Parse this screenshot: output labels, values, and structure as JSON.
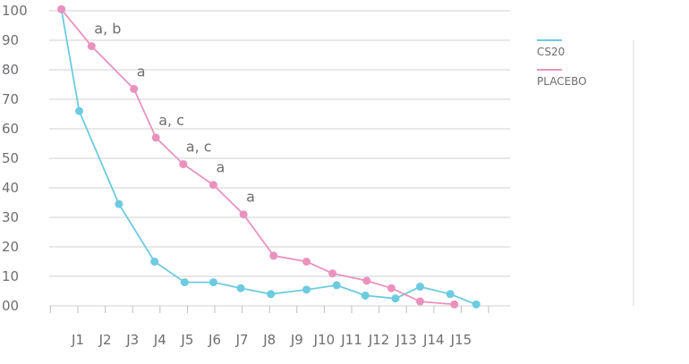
{
  "chart_data": {
    "type": "line",
    "title": "",
    "xlabel": "",
    "ylabel": "",
    "ylim": [
      0,
      100
    ],
    "y_ticks": [
      "00",
      "10",
      "20",
      "30",
      "40",
      "50",
      "60",
      "70",
      "80",
      "90",
      "100"
    ],
    "x_ticks": [
      "J1",
      "J2",
      "J3",
      "J4",
      "J5",
      "J6",
      "J7",
      "J8",
      "J9",
      "J10",
      "J11",
      "J12",
      "J13",
      "J14",
      "J15"
    ],
    "grid": true,
    "legend_position": "right",
    "series": [
      {
        "name": "CS20",
        "color": "#6ccbe0",
        "points": [
          {
            "x": 0.4,
            "y": 100.5
          },
          {
            "x": 1.05,
            "y": 66
          },
          {
            "x": 2.5,
            "y": 34.5
          },
          {
            "x": 3.8,
            "y": 15
          },
          {
            "x": 4.9,
            "y": 8
          },
          {
            "x": 5.95,
            "y": 8
          },
          {
            "x": 6.95,
            "y": 6
          },
          {
            "x": 8.05,
            "y": 4
          },
          {
            "x": 9.35,
            "y": 5.5
          },
          {
            "x": 10.45,
            "y": 7
          },
          {
            "x": 11.5,
            "y": 3.5
          },
          {
            "x": 12.6,
            "y": 2.5
          },
          {
            "x": 13.5,
            "y": 6.5
          },
          {
            "x": 14.6,
            "y": 4
          },
          {
            "x": 15.55,
            "y": 0.5
          }
        ]
      },
      {
        "name": "PLACEBO",
        "color": "#ea92bd",
        "points": [
          {
            "x": 0.4,
            "y": 100.5
          },
          {
            "x": 1.5,
            "y": 88
          },
          {
            "x": 3.05,
            "y": 73.5
          },
          {
            "x": 3.85,
            "y": 57
          },
          {
            "x": 4.85,
            "y": 48
          },
          {
            "x": 5.95,
            "y": 41
          },
          {
            "x": 7.05,
            "y": 31
          },
          {
            "x": 8.15,
            "y": 17
          },
          {
            "x": 9.35,
            "y": 15
          },
          {
            "x": 10.3,
            "y": 11
          },
          {
            "x": 11.55,
            "y": 8.5
          },
          {
            "x": 12.45,
            "y": 6
          },
          {
            "x": 13.5,
            "y": 1.5
          },
          {
            "x": 14.75,
            "y": 0.5
          }
        ]
      }
    ],
    "annotations": [
      {
        "text": "a, b",
        "x": 1.5,
        "y": 88
      },
      {
        "text": "a",
        "x": 3.05,
        "y": 73.5
      },
      {
        "text": "a, c",
        "x": 3.85,
        "y": 57
      },
      {
        "text": "a, c",
        "x": 4.85,
        "y": 48
      },
      {
        "text": "a",
        "x": 5.95,
        "y": 41
      },
      {
        "text": "a",
        "x": 7.05,
        "y": 31
      }
    ]
  }
}
